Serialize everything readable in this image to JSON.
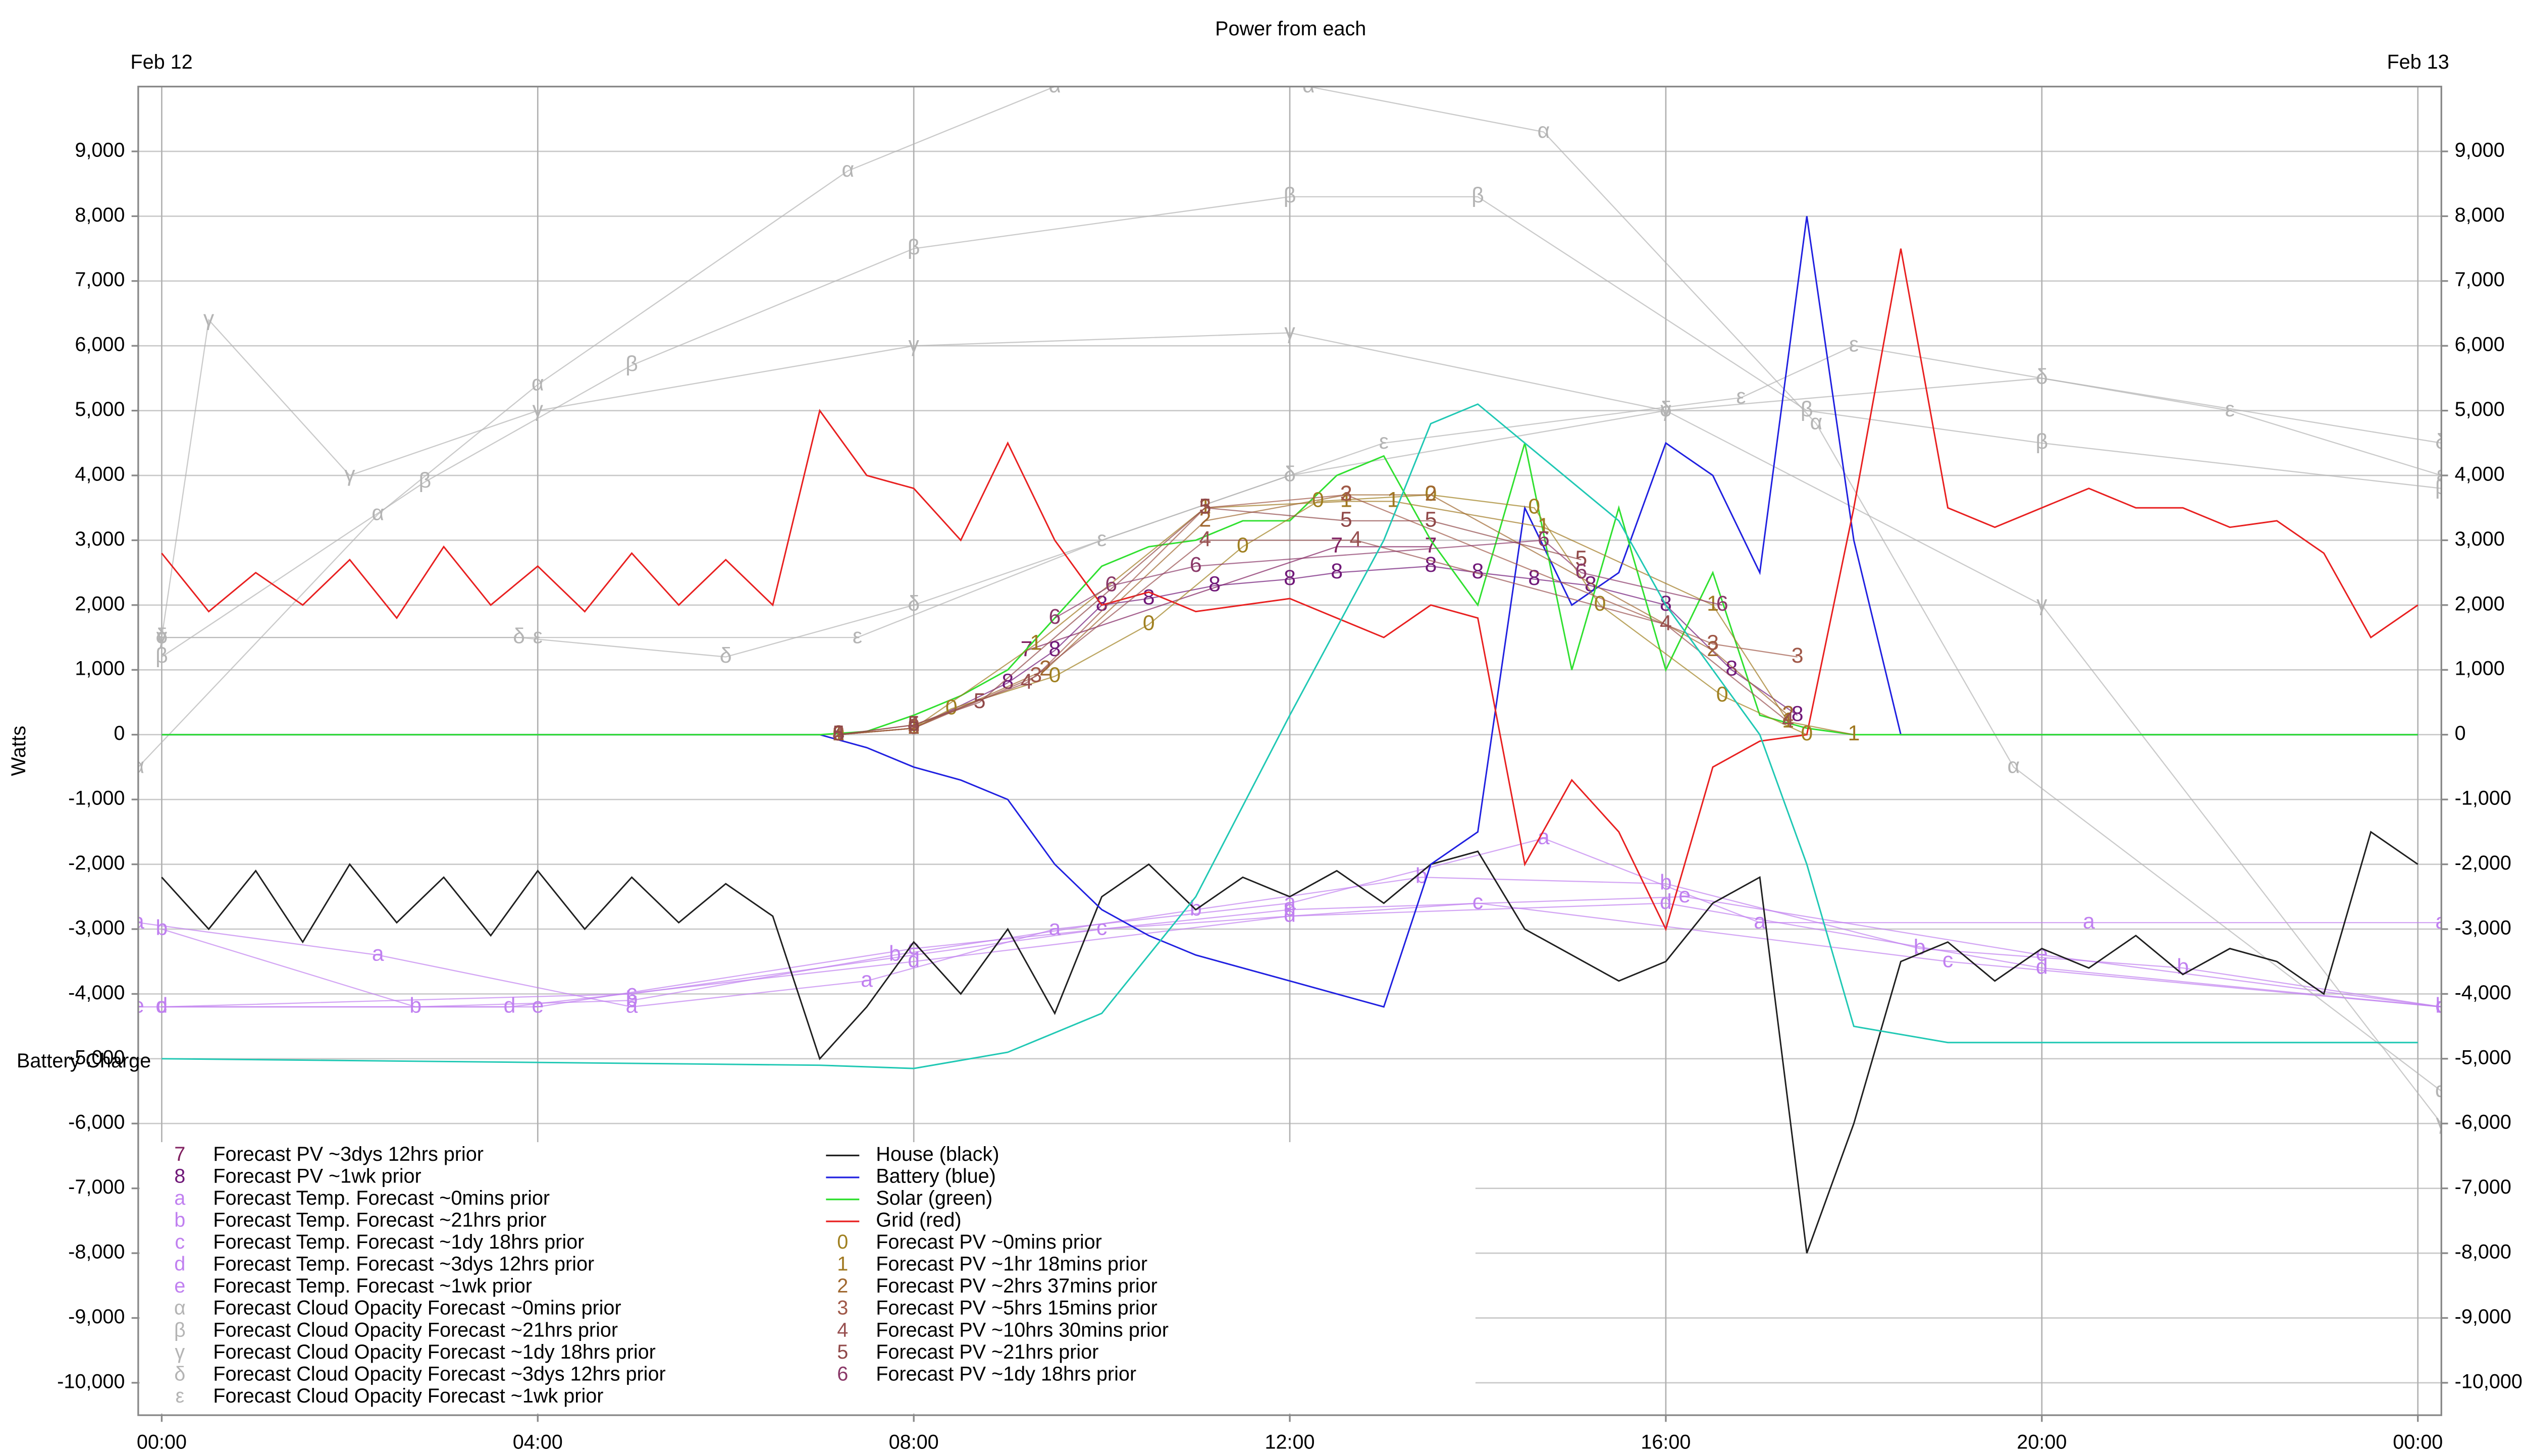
{
  "chart_data": {
    "type": "line",
    "title": "Power from each",
    "date_labels": [
      "Feb 12",
      "Feb 13"
    ],
    "note": "Battery Charge",
    "ylabel": "Watts",
    "grid": true,
    "legend": "lower left",
    "xlim": [
      -0.25,
      24.25
    ],
    "ylim": [
      -10500,
      10000
    ],
    "xticks": [
      {
        "value": 0,
        "label": "00:00"
      },
      {
        "value": 4,
        "label": "04:00"
      },
      {
        "value": 8,
        "label": "08:00"
      },
      {
        "value": 12,
        "label": "12:00"
      },
      {
        "value": 16,
        "label": "16:00"
      },
      {
        "value": 20,
        "label": "20:00"
      },
      {
        "value": 24,
        "label": "00:00"
      }
    ],
    "yticks": [
      {
        "value": 9000,
        "label": "9,000"
      },
      {
        "value": 8000,
        "label": "8,000"
      },
      {
        "value": 7000,
        "label": "7,000"
      },
      {
        "value": 6000,
        "label": "6,000"
      },
      {
        "value": 5000,
        "label": "5,000"
      },
      {
        "value": 4000,
        "label": "4,000"
      },
      {
        "value": 3000,
        "label": "3,000"
      },
      {
        "value": 2000,
        "label": "2,000"
      },
      {
        "value": 1000,
        "label": "1,000"
      },
      0,
      {
        "value": -1000,
        "label": "-1,000"
      },
      {
        "value": -2000,
        "label": "-2,000"
      },
      {
        "value": -3000,
        "label": "-3,000"
      },
      {
        "value": -4000,
        "label": "-4,000"
      },
      {
        "value": -5000,
        "label": "-5,000"
      },
      {
        "value": -6000,
        "label": "-6,000"
      },
      {
        "value": -7000,
        "label": "-7,000"
      },
      {
        "value": -8000,
        "label": "-8,000"
      },
      {
        "value": -9000,
        "label": "-9,000"
      },
      {
        "value": -10000,
        "label": "-10,000"
      }
    ],
    "x": [
      0,
      0.5,
      1,
      1.5,
      2,
      2.5,
      3,
      3.5,
      4,
      4.5,
      5,
      5.5,
      6,
      6.5,
      7,
      7.5,
      8,
      8.5,
      9,
      9.5,
      10,
      10.5,
      11,
      11.5,
      12,
      12.5,
      13,
      13.5,
      14,
      14.5,
      15,
      15.5,
      16,
      16.5,
      17,
      17.5,
      18,
      18.5,
      19,
      19.5,
      20,
      20.5,
      21,
      21.5,
      22,
      22.5,
      23,
      23.5,
      24
    ],
    "series": [
      {
        "name": "Forecast PV ~3dys 12hrs prior",
        "marker": "7",
        "color": "#802060",
        "x": [
          9.2,
          12.5,
          13.5
        ],
        "values": [
          1300,
          2900,
          2900
        ]
      },
      {
        "name": "Forecast PV ~1wk prior",
        "marker": "8",
        "color": "#701878",
        "x": [
          7.2,
          8,
          9,
          9.5,
          10,
          10.5,
          11.2,
          12,
          12.5,
          13.5,
          14,
          14.6,
          15.2,
          16,
          16.7,
          17.4
        ],
        "values": [
          0,
          100,
          800,
          1300,
          2000,
          2100,
          2300,
          2400,
          2500,
          2600,
          2500,
          2400,
          2300,
          2000,
          1000,
          300
        ]
      },
      {
        "name": "Forecast Temp. Forecast ~0mins prior",
        "marker": "a",
        "color": "#c080f0",
        "x": [
          -0.25,
          2.3,
          5,
          7.5,
          9.5,
          12,
          14.7,
          17,
          20.5,
          24.25
        ],
        "values": [
          -2900,
          -3400,
          -4200,
          -3800,
          -3000,
          -2600,
          -1600,
          -2900,
          -2900,
          -2900
        ]
      },
      {
        "name": "Forecast Temp. Forecast ~21hrs prior",
        "marker": "b",
        "color": "#c080f0",
        "x": [
          0,
          2.7,
          5,
          7.8,
          11,
          13.4,
          16,
          18.7,
          21.5,
          24.25
        ],
        "values": [
          -3000,
          -4200,
          -4100,
          -3400,
          -2700,
          -2200,
          -2300,
          -3300,
          -3600,
          -4200
        ]
      },
      {
        "name": "Forecast Temp. Forecast ~1dy 18hrs prior",
        "marker": "c",
        "color": "#c080f0",
        "x": [
          0,
          5,
          10,
          14,
          19,
          24.25
        ],
        "values": [
          -4200,
          -4000,
          -3000,
          -2600,
          -3500,
          -4200
        ]
      },
      {
        "name": "Forecast Temp. Forecast ~3dys 12hrs prior",
        "marker": "d",
        "color": "#c080f0",
        "x": [
          0,
          3.7,
          8,
          12,
          16,
          20,
          24.25
        ],
        "values": [
          -4200,
          -4200,
          -3500,
          -2800,
          -2600,
          -3600,
          -4200
        ]
      },
      {
        "name": "Forecast Temp. Forecast ~1wk prior",
        "marker": "e",
        "color": "#c080f0",
        "x": [
          -0.25,
          4,
          8,
          12,
          16.2,
          20,
          24.25
        ],
        "values": [
          -4200,
          -4200,
          -3300,
          -2700,
          -2500,
          -3400,
          -4200
        ]
      },
      {
        "name": "Forecast Cloud Opacity Forecast ~0mins prior",
        "marker": "α",
        "color": "#b4b4b4",
        "x": [
          -0.25,
          2.3,
          4,
          7.3,
          9.5,
          12.2,
          14.7,
          17.6,
          19.7,
          24.25
        ],
        "values": [
          -500,
          3400,
          5400,
          8700,
          10000,
          10000,
          9300,
          4800,
          -500,
          -5500
        ]
      },
      {
        "name": "Forecast Cloud Opacity Forecast ~21hrs prior",
        "marker": "β",
        "color": "#b4b4b4",
        "x": [
          0,
          2.8,
          5,
          8,
          12,
          14,
          17.5,
          20,
          24.25
        ],
        "values": [
          1200,
          3900,
          5700,
          7500,
          8300,
          8300,
          5000,
          4500,
          3800
        ]
      },
      {
        "name": "Forecast Cloud Opacity Forecast ~1dy 18hrs prior",
        "marker": "γ",
        "color": "#b4b4b4",
        "x": [
          0,
          0.5,
          2,
          4,
          8,
          12,
          16,
          20,
          24.25
        ],
        "values": [
          1500,
          6400,
          4000,
          5000,
          6000,
          6200,
          5000,
          2000,
          -6000
        ]
      },
      {
        "name": "Forecast Cloud Opacity Forecast ~3dys 12hrs prior",
        "marker": "δ",
        "color": "#b4b4b4",
        "x": [
          0,
          3.8,
          6,
          8,
          12,
          16,
          20,
          24.25
        ],
        "values": [
          1500,
          1500,
          1200,
          2000,
          4000,
          5000,
          5500,
          4500
        ]
      },
      {
        "name": "Forecast Cloud Opacity Forecast ~1wk prior",
        "marker": "ε",
        "color": "#b4b4b4",
        "x": [
          0,
          4,
          7.4,
          10,
          13,
          16.8,
          18,
          22,
          24.25
        ],
        "values": [
          1500,
          1500,
          1500,
          3000,
          4500,
          5200,
          6000,
          5000,
          4000
        ]
      },
      {
        "name": "House (black)",
        "color": "#202020",
        "values": [
          -2200,
          -3000,
          -2100,
          -3200,
          -2000,
          -2900,
          -2200,
          -3100,
          -2100,
          -3000,
          -2200,
          -2900,
          -2300,
          -2800,
          -5000,
          -4200,
          -3200,
          -4000,
          -3000,
          -4300,
          -2500,
          -2000,
          -2700,
          -2200,
          -2500,
          -2100,
          -2600,
          -2000,
          -1800,
          -3000,
          -3400,
          -3800,
          -3500,
          -2600,
          -2200,
          -8000,
          -6000,
          -3500,
          -3200,
          -3800,
          -3300,
          -3600,
          -3100,
          -3700,
          -3300,
          -3500,
          -4000,
          -1500,
          -2000
        ]
      },
      {
        "name": "Battery (blue)",
        "color": "#2020e0",
        "values": [
          0,
          0,
          0,
          0,
          0,
          0,
          0,
          0,
          0,
          0,
          0,
          0,
          0,
          0,
          0,
          -200,
          -500,
          -700,
          -1000,
          -2000,
          -2700,
          -3100,
          -3400,
          -3600,
          -3800,
          -4000,
          -4200,
          -2000,
          -1500,
          3500,
          2000,
          2500,
          4500,
          4000,
          2500,
          8000,
          3000,
          0,
          0,
          0,
          0,
          0,
          0,
          0,
          0,
          0,
          0,
          0,
          0
        ]
      },
      {
        "name": "Solar (green)",
        "color": "#30e030",
        "values": [
          0,
          0,
          0,
          0,
          0,
          0,
          0,
          0,
          0,
          0,
          0,
          0,
          0,
          0,
          0,
          50,
          300,
          600,
          1000,
          1800,
          2600,
          2900,
          3000,
          3300,
          3300,
          4000,
          4300,
          3000,
          2000,
          4500,
          1000,
          3500,
          1000,
          2500,
          300,
          100,
          0,
          0,
          0,
          0,
          0,
          0,
          0,
          0,
          0,
          0,
          0,
          0,
          0
        ]
      },
      {
        "name": "Grid (red)",
        "color": "#e82020",
        "values": [
          2800,
          1900,
          2500,
          2000,
          2700,
          1800,
          2900,
          2000,
          2600,
          1900,
          2800,
          2000,
          2700,
          2000,
          5000,
          4000,
          3800,
          3000,
          4500,
          3000,
          2000,
          2200,
          1900,
          2000,
          2100,
          1800,
          1500,
          2000,
          1800,
          -2000,
          -700,
          -1500,
          -3000,
          -500,
          -100,
          0,
          3500,
          7500,
          3500,
          3200,
          3500,
          3800,
          3500,
          3500,
          3200,
          3300,
          2800,
          1500,
          2000
        ]
      },
      {
        "name": "Forecast PV ~0mins prior",
        "marker": "0",
        "color": "#a08020",
        "x": [
          7.2,
          8,
          8.4,
          9.5,
          10.5,
          11.5,
          12.3,
          13.5,
          14.6,
          15.3,
          16.6,
          17.5
        ],
        "values": [
          0,
          100,
          400,
          900,
          1700,
          2900,
          3600,
          3700,
          3500,
          2000,
          600,
          0
        ]
      },
      {
        "name": "Forecast PV ~1hr 18mins prior",
        "marker": "1",
        "color": "#a07820",
        "x": [
          7.2,
          8,
          9.3,
          11.1,
          12.6,
          13.1,
          14.7,
          16.5,
          17.3,
          18
        ],
        "values": [
          0,
          100,
          1400,
          3500,
          3600,
          3600,
          3200,
          2000,
          200,
          0
        ]
      },
      {
        "name": "Forecast PV ~2hrs 37mins prior",
        "marker": "2",
        "color": "#a06830",
        "x": [
          7.2,
          8,
          9.4,
          11.1,
          12.6,
          13.5,
          16.5,
          17.3
        ],
        "values": [
          0,
          100,
          1000,
          3300,
          3700,
          3700,
          1300,
          300
        ]
      },
      {
        "name": "Forecast PV ~5hrs 15mins prior",
        "marker": "3",
        "color": "#a05848",
        "x": [
          7.2,
          8,
          9.3,
          11.1,
          12.6,
          16.5,
          17.4
        ],
        "values": [
          0,
          100,
          900,
          3500,
          3700,
          1400,
          1200
        ]
      },
      {
        "name": "Forecast PV ~10hrs 30mins prior",
        "marker": "4",
        "color": "#985050",
        "x": [
          7.2,
          8,
          9.2,
          11.1,
          12.7,
          16,
          17.3
        ],
        "values": [
          0,
          150,
          800,
          3000,
          3000,
          1700,
          200
        ]
      },
      {
        "name": "Forecast PV ~21hrs prior",
        "marker": "5",
        "color": "#904848",
        "x": [
          7.2,
          8,
          8.7,
          11.1,
          12.6,
          13.5,
          15.1
        ],
        "values": [
          0,
          150,
          500,
          3500,
          3300,
          3300,
          2700
        ]
      },
      {
        "name": "Forecast PV ~1dy 18hrs prior",
        "marker": "6",
        "color": "#8a3868",
        "x": [
          9.5,
          10.1,
          11,
          14.7,
          15.1,
          16.6
        ],
        "values": [
          1800,
          2300,
          2600,
          3000,
          2500,
          2000
        ]
      },
      {
        "color": "#20c8b4",
        "x": [
          0,
          7,
          8,
          9,
          10,
          11,
          12,
          13,
          13.5,
          14,
          14.5,
          15.5,
          16,
          17,
          17.5,
          18,
          19,
          24
        ],
        "values": [
          -5000,
          -5100,
          -5150,
          -4900,
          -4300,
          -2500,
          300,
          3000,
          4800,
          5100,
          4500,
          3300,
          2000,
          0,
          -2000,
          -4500,
          -4750,
          -4750
        ]
      }
    ]
  }
}
